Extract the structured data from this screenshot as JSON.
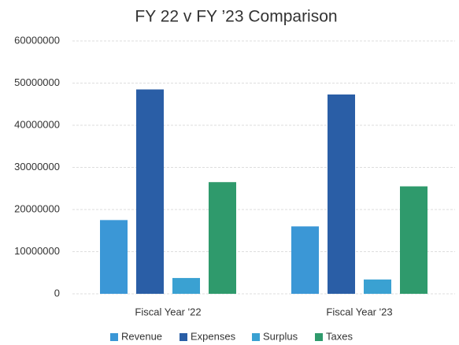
{
  "chart_data": {
    "type": "bar",
    "title": "FY 22 v FY ’23 Comparison",
    "categories": [
      "Fiscal Year '22",
      "Fiscal Year '23"
    ],
    "series": [
      {
        "name": "Revenue",
        "color": "#3b97d6",
        "values": [
          17500000,
          16000000
        ]
      },
      {
        "name": "Expenses",
        "color": "#2a5ea6",
        "values": [
          48500000,
          47300000
        ]
      },
      {
        "name": "Surplus",
        "color": "#3aa1d2",
        "values": [
          3750000,
          3400000
        ]
      },
      {
        "name": "Taxes",
        "color": "#2f9a6c",
        "values": [
          26500000,
          25500000
        ]
      }
    ],
    "ylim": [
      0,
      60000000
    ],
    "yticks": [
      0,
      10000000,
      20000000,
      30000000,
      40000000,
      50000000,
      60000000
    ],
    "grid": true,
    "legend": "bottom"
  }
}
